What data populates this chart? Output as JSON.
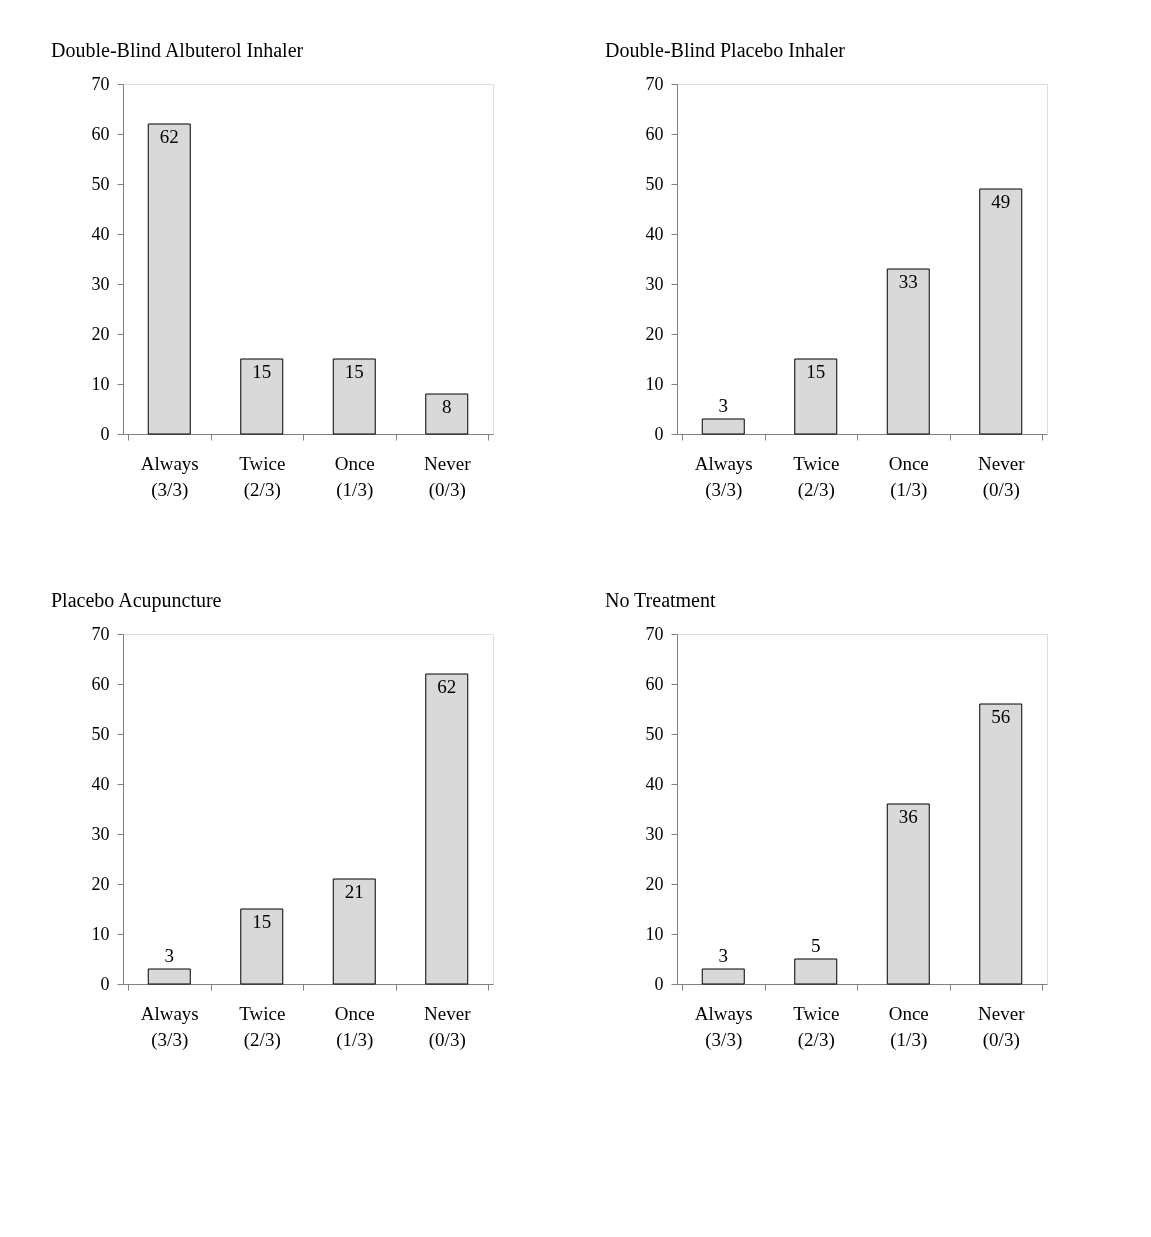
{
  "chart_data": [
    {
      "type": "bar",
      "title": "Double-Blind Albuterol Inhaler",
      "categories": [
        "Always\n(3/3)",
        "Twice\n(2/3)",
        "Once\n(1/3)",
        "Never\n(0/3)"
      ],
      "values": [
        62,
        15,
        15,
        8
      ],
      "color": "#d9d9d9",
      "ylim": [
        0,
        70
      ],
      "yticks": [
        0,
        10,
        20,
        30,
        40,
        50,
        60,
        70
      ],
      "grid": false,
      "data_labels": true
    },
    {
      "type": "bar",
      "title": "Double-Blind Placebo Inhaler",
      "categories": [
        "Always\n(3/3)",
        "Twice\n(2/3)",
        "Once\n(1/3)",
        "Never\n(0/3)"
      ],
      "values": [
        3,
        15,
        33,
        49
      ],
      "color": "#d9d9d9",
      "ylim": [
        0,
        70
      ],
      "yticks": [
        0,
        10,
        20,
        30,
        40,
        50,
        60,
        70
      ],
      "grid": false,
      "data_labels": true
    },
    {
      "type": "bar",
      "title": "Placebo Acupuncture",
      "categories": [
        "Always\n(3/3)",
        "Twice\n(2/3)",
        "Once\n(1/3)",
        "Never\n(0/3)"
      ],
      "values": [
        3,
        15,
        21,
        62
      ],
      "color": "#d9d9d9",
      "ylim": [
        0,
        70
      ],
      "yticks": [
        0,
        10,
        20,
        30,
        40,
        50,
        60,
        70
      ],
      "grid": false,
      "data_labels": true
    },
    {
      "type": "bar",
      "title": "No Treatment",
      "categories": [
        "Always\n(3/3)",
        "Twice\n(2/3)",
        "Once\n(1/3)",
        "Never\n(0/3)"
      ],
      "values": [
        3,
        5,
        36,
        56
      ],
      "color": "#d9d9d9",
      "ylim": [
        0,
        70
      ],
      "yticks": [
        0,
        10,
        20,
        30,
        40,
        50,
        60,
        70
      ],
      "grid": false,
      "data_labels": true
    }
  ]
}
